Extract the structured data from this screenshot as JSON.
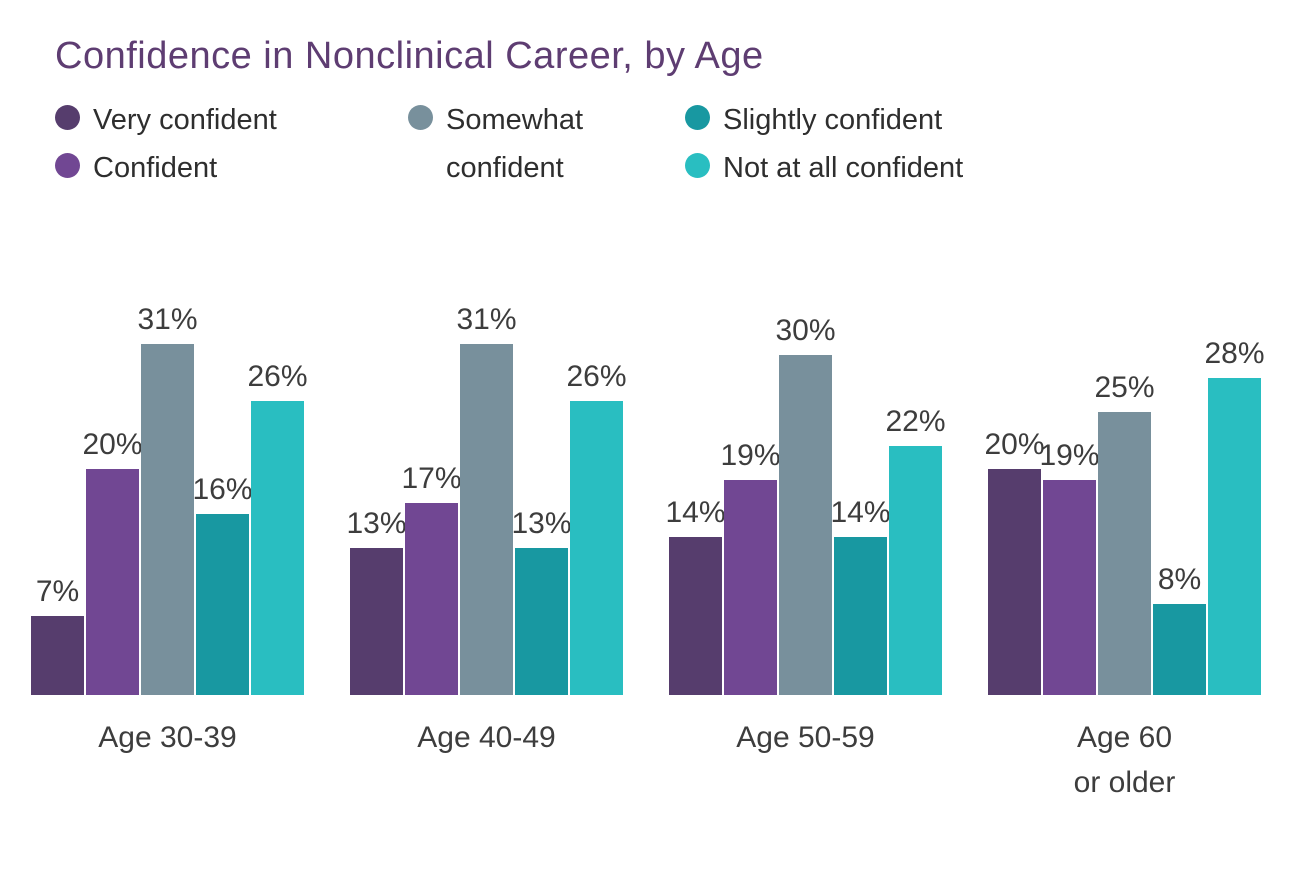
{
  "chart_data": {
    "type": "bar",
    "title": "Confidence in Nonclinical Career, by Age",
    "categories": [
      "Age 30-39",
      "Age 40-49",
      "Age 50-59",
      "Age 60\nor older"
    ],
    "series": [
      {
        "name": "Very confident",
        "color": "#563d6d",
        "values": [
          7,
          13,
          14,
          20
        ]
      },
      {
        "name": "Confident",
        "color": "#714793",
        "values": [
          20,
          17,
          19,
          19
        ]
      },
      {
        "name": "Somewhat confident",
        "color": "#78909c",
        "values": [
          31,
          31,
          30,
          25
        ]
      },
      {
        "name": "Slightly confident",
        "color": "#1898a1",
        "values": [
          16,
          13,
          14,
          8
        ]
      },
      {
        "name": "Not at all confident",
        "color": "#29bec1",
        "values": [
          26,
          26,
          22,
          28
        ]
      }
    ],
    "value_suffix": "%",
    "ylim": [
      0,
      31
    ],
    "grid": false,
    "legend_position": "top",
    "title_color": "#5e3d72",
    "label_color": "#3d3d3d"
  }
}
